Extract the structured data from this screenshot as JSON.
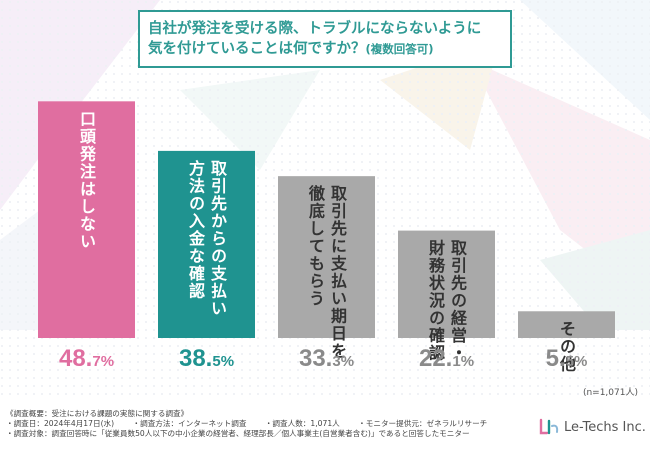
{
  "title": {
    "line1": "自社が発注を受ける際、トラブルにならないように",
    "line2": "気を付けていることは何ですか？",
    "note": "(複数回答可)"
  },
  "chart_data": {
    "type": "bar",
    "categories": [
      "口頭発注はしない",
      "取引先からの支払い方法の入金な確認",
      "取引先に支払い期日を徹底してもらう",
      "取引先の経営・財務状況の確認",
      "その他"
    ],
    "category_lines": [
      [
        "口頭発注はしない"
      ],
      [
        "取引先からの支払い",
        "方法の入金な確認"
      ],
      [
        "取引先に支払い期日を",
        "徹底してもらう"
      ],
      [
        "取引先の経営・",
        "財務状況の確認"
      ],
      [
        "その他"
      ]
    ],
    "values": [
      48.7,
      38.5,
      33.3,
      22.1,
      5.5
    ],
    "value_labels": [
      {
        "int": "48.",
        "dec": "7",
        "unit": "%"
      },
      {
        "int": "38.",
        "dec": "5",
        "unit": "%"
      },
      {
        "int": "33.",
        "dec": "3",
        "unit": "%"
      },
      {
        "int": "22.",
        "dec": "1",
        "unit": "%"
      },
      {
        "int": "5.",
        "dec": "5",
        "unit": "%"
      }
    ],
    "bar_colors": [
      "#e06ea0",
      "#1f9390",
      "#a9a9a9",
      "#a9a9a9",
      "#a9a9a9"
    ],
    "label_colors": [
      "#e06ea0",
      "#1f9390",
      "#8a8a8a",
      "#8a8a8a",
      "#8a8a8a"
    ],
    "text_colors": [
      "#ffffff",
      "#ffffff",
      "#333333",
      "#333333",
      "#333333"
    ],
    "ylim": [
      0,
      50
    ],
    "grid": false,
    "legend": "none"
  },
  "n_label": "(n=1,071人)",
  "footer": {
    "line1": "《調査概要：受注における課題の実態に関する調査》",
    "line2": [
      "・調査日：2024年4月17日(水)",
      "・調査方法：インターネット調査",
      "・調査人数：1,071人",
      "・モニター提供元：ゼネラルリサーチ"
    ],
    "line3": "・調査対象：調査回答時に「従業員数50人以下の中小企業の経営者、経理部長／個人事業主(自営業者含む)」であると回答したモニター"
  },
  "logo": {
    "text": "Le-Techs Inc.",
    "colors": [
      "#e06ea0",
      "#1f9390"
    ]
  }
}
